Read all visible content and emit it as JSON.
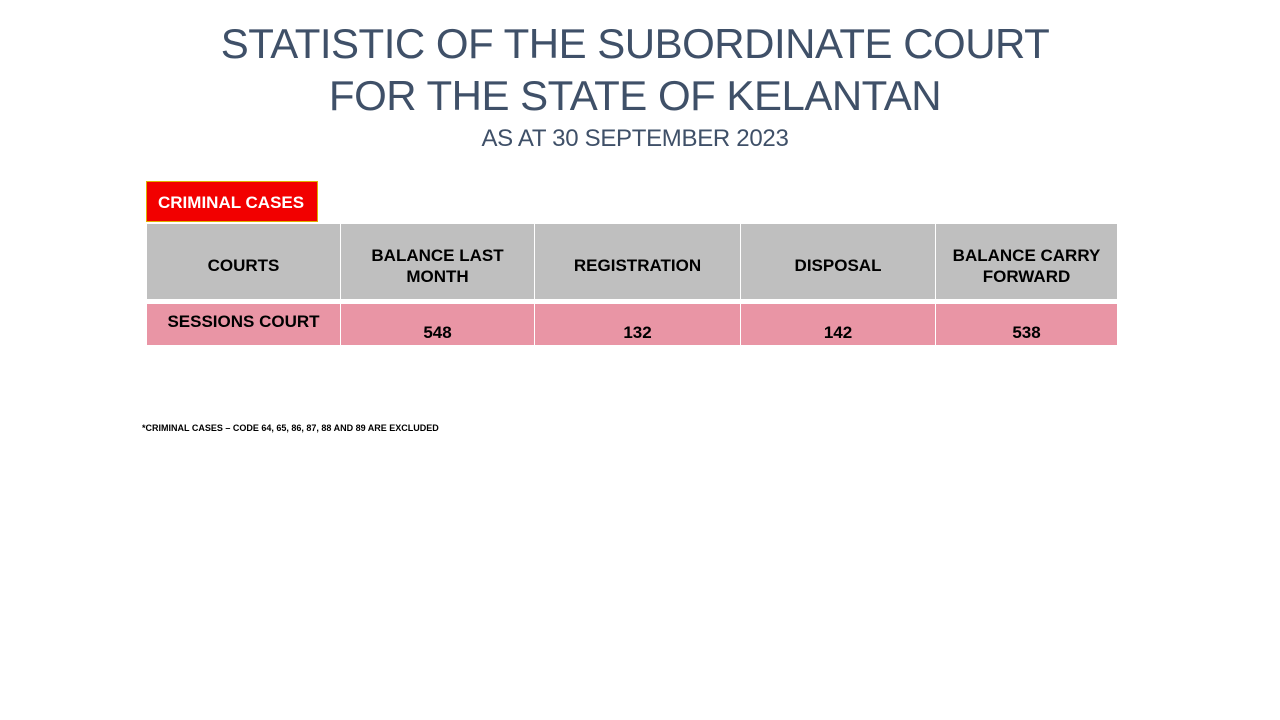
{
  "header": {
    "title_line_1": "STATISTIC OF THE SUBORDINATE COURT",
    "title_line_2": "FOR THE STATE OF KELANTAN",
    "subtitle": "AS AT 30 SEPTEMBER 2023"
  },
  "section_tag": "CRIMINAL CASES",
  "table": {
    "headers": {
      "courts": "COURTS",
      "balance_last_month": "BALANCE LAST MONTH",
      "registration": "REGISTRATION",
      "disposal": "DISPOSAL",
      "balance_carry_forward": "BALANCE CARRY FORWARD"
    },
    "rows": [
      {
        "court": "SESSIONS COURT",
        "balance_last_month": "548",
        "registration": "132",
        "disposal": "142",
        "balance_carry_forward": "538"
      }
    ]
  },
  "colors": {
    "title": "#3f5068",
    "tag_background": "#f20000",
    "header_background": "#bfbfbf",
    "row_background": "#e995a5"
  },
  "footnote": "*CRIMINAL CASES – CODE 64, 65, 86, 87, 88 AND 89 ARE EXCLUDED"
}
